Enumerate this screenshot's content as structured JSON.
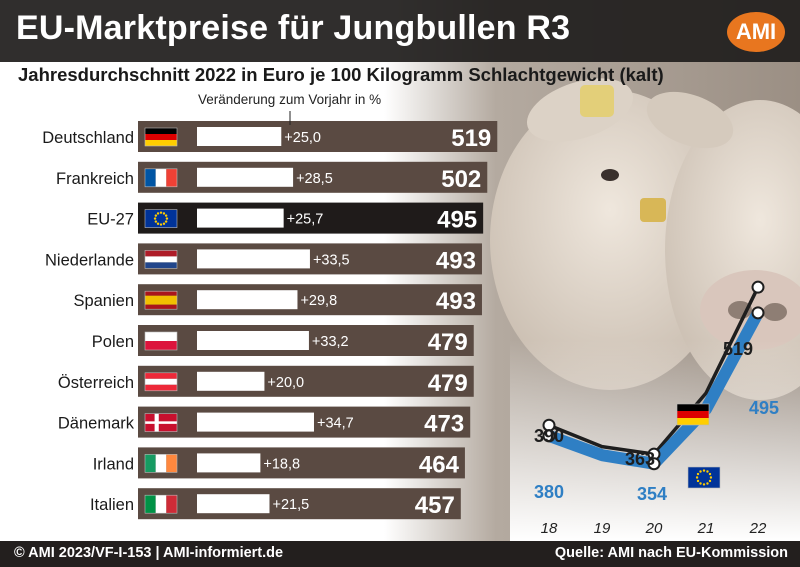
{
  "header": {
    "title": "EU-Marktpreise für Jungbullen R3",
    "logo_text": "AMI"
  },
  "chart_data": [
    {
      "type": "bar",
      "title": "Jahresdurchschnitt 2022 in Euro je 100 Kilogramm Schlachtgewicht (kalt)",
      "change_label": "Veränderung zum Vorjahr in %",
      "categories": [
        "Deutschland",
        "Frankreich",
        "EU-27",
        "Niederlande",
        "Spanien",
        "Polen",
        "Österreich",
        "Dänemark",
        "Irland",
        "Italien"
      ],
      "flags": [
        "de",
        "fr",
        "eu",
        "nl",
        "es",
        "pl",
        "at",
        "dk",
        "ie",
        "it"
      ],
      "values": [
        519,
        502,
        495,
        493,
        493,
        479,
        479,
        473,
        464,
        457
      ],
      "changes": [
        "+25,0",
        "+28,5",
        "+25,7",
        "+33,5",
        "+29,8",
        "+33,2",
        "+20,0",
        "+34,7",
        "+18,8",
        "+21,5"
      ],
      "change_values": [
        25.0,
        28.5,
        25.7,
        33.5,
        29.8,
        33.2,
        20.0,
        34.7,
        18.8,
        21.5
      ],
      "highlight": "EU-27",
      "colors": {
        "bar": "#5a4a42",
        "highlight_bar": "#1f1b1a",
        "change_bar": "#ffffff"
      }
    },
    {
      "type": "line",
      "x": [
        "18",
        "19",
        "20",
        "21",
        "22"
      ],
      "series": [
        {
          "flag": "de",
          "values": [
            390,
            370,
            363,
            420,
            519
          ],
          "labels": [
            "390",
            "",
            "363",
            "",
            "519"
          ],
          "color": "#1e1e1e"
        },
        {
          "flag": "eu",
          "values": [
            380,
            362,
            354,
            405,
            495
          ],
          "labels": [
            "380",
            "",
            "354",
            "",
            "495"
          ],
          "color": "#2f7fc4"
        }
      ],
      "ylim": [
        330,
        540
      ]
    }
  ],
  "footer": {
    "left": "© AMI 2023/VF-I-153 | AMI-informiert.de",
    "right": "Quelle: AMI nach EU-Kommission"
  }
}
